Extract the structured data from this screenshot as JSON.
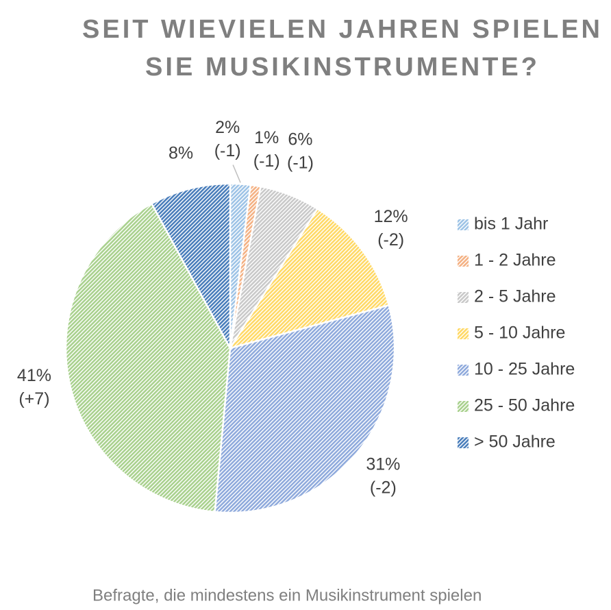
{
  "chart_data": {
    "type": "pie",
    "title": [
      "SEIT WIEVIELEN JAHREN SPIELEN",
      "SIE MUSIKINSTRUMENTE?"
    ],
    "categories": [
      "bis 1 Jahr",
      "1 - 2 Jahre",
      "2 - 5 Jahre",
      "5 - 10 Jahre",
      "10 - 25 Jahre",
      "25 - 50 Jahre",
      "> 50 Jahre"
    ],
    "values": [
      2,
      1,
      6,
      12,
      31,
      41,
      8
    ],
    "value_labels": [
      "2%",
      "1%",
      "6%",
      "12%",
      "31%",
      "41%",
      "8%"
    ],
    "changes": [
      "(-1)",
      "(-1)",
      "(-1)",
      "(-2)",
      "(-2)",
      "(+7)",
      null
    ],
    "colors": [
      "#9dc3e6",
      "#f4b183",
      "#c9c9c9",
      "#ffd966",
      "#8faadc",
      "#a9d18e",
      "#4a7ebb"
    ],
    "legend": "right",
    "footnote": "Befragte, die mindestens ein Musikinstrument spielen"
  }
}
